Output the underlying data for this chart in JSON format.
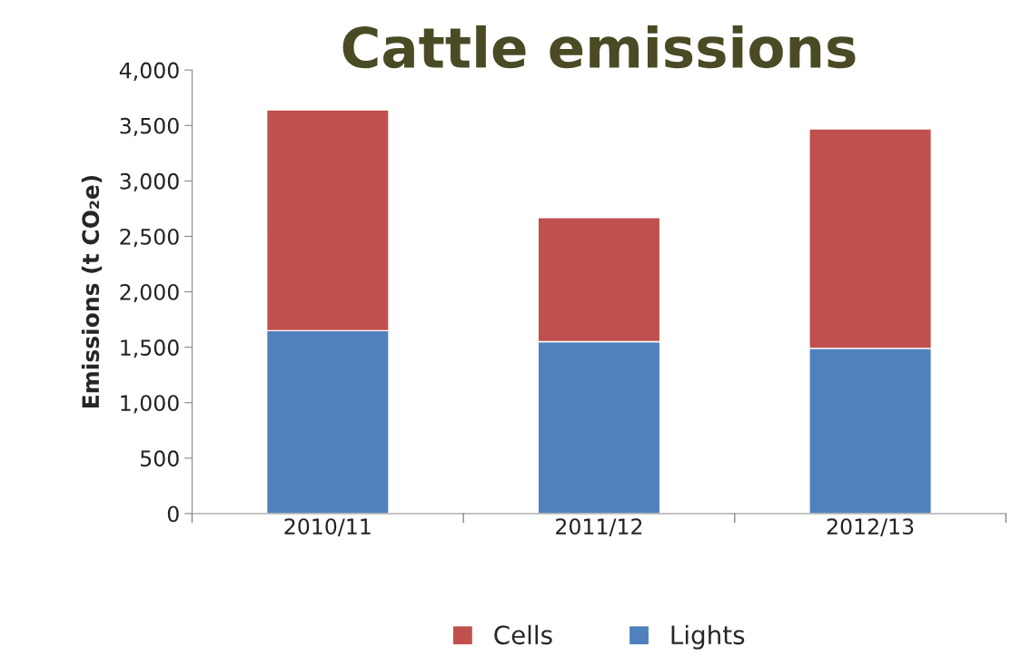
{
  "chart_data": {
    "type": "bar",
    "title": "Cattle emissions",
    "ylabel": "Emissions (t CO₂e)",
    "categories": [
      "2010/11",
      "2011/12",
      "2012/13"
    ],
    "stacked": true,
    "series": [
      {
        "name": "Lights",
        "color": "#4f81bd",
        "values": [
          1650,
          1550,
          1490
        ]
      },
      {
        "name": "Cells",
        "color": "#c0504d",
        "values": [
          1990,
          1120,
          1980
        ]
      }
    ],
    "ylim": [
      0,
      4000
    ],
    "yticks": [
      {
        "value": 0,
        "label": "0"
      },
      {
        "value": 500,
        "label": "500"
      },
      {
        "value": 1000,
        "label": "1,000"
      },
      {
        "value": 1500,
        "label": "1,500"
      },
      {
        "value": 2000,
        "label": "2,000"
      },
      {
        "value": 2500,
        "label": "2,500"
      },
      {
        "value": 3000,
        "label": "3,000"
      },
      {
        "value": 3500,
        "label": "3,500"
      },
      {
        "value": 4000,
        "label": "4,000"
      }
    ],
    "grid": false,
    "legend": "bottom"
  }
}
